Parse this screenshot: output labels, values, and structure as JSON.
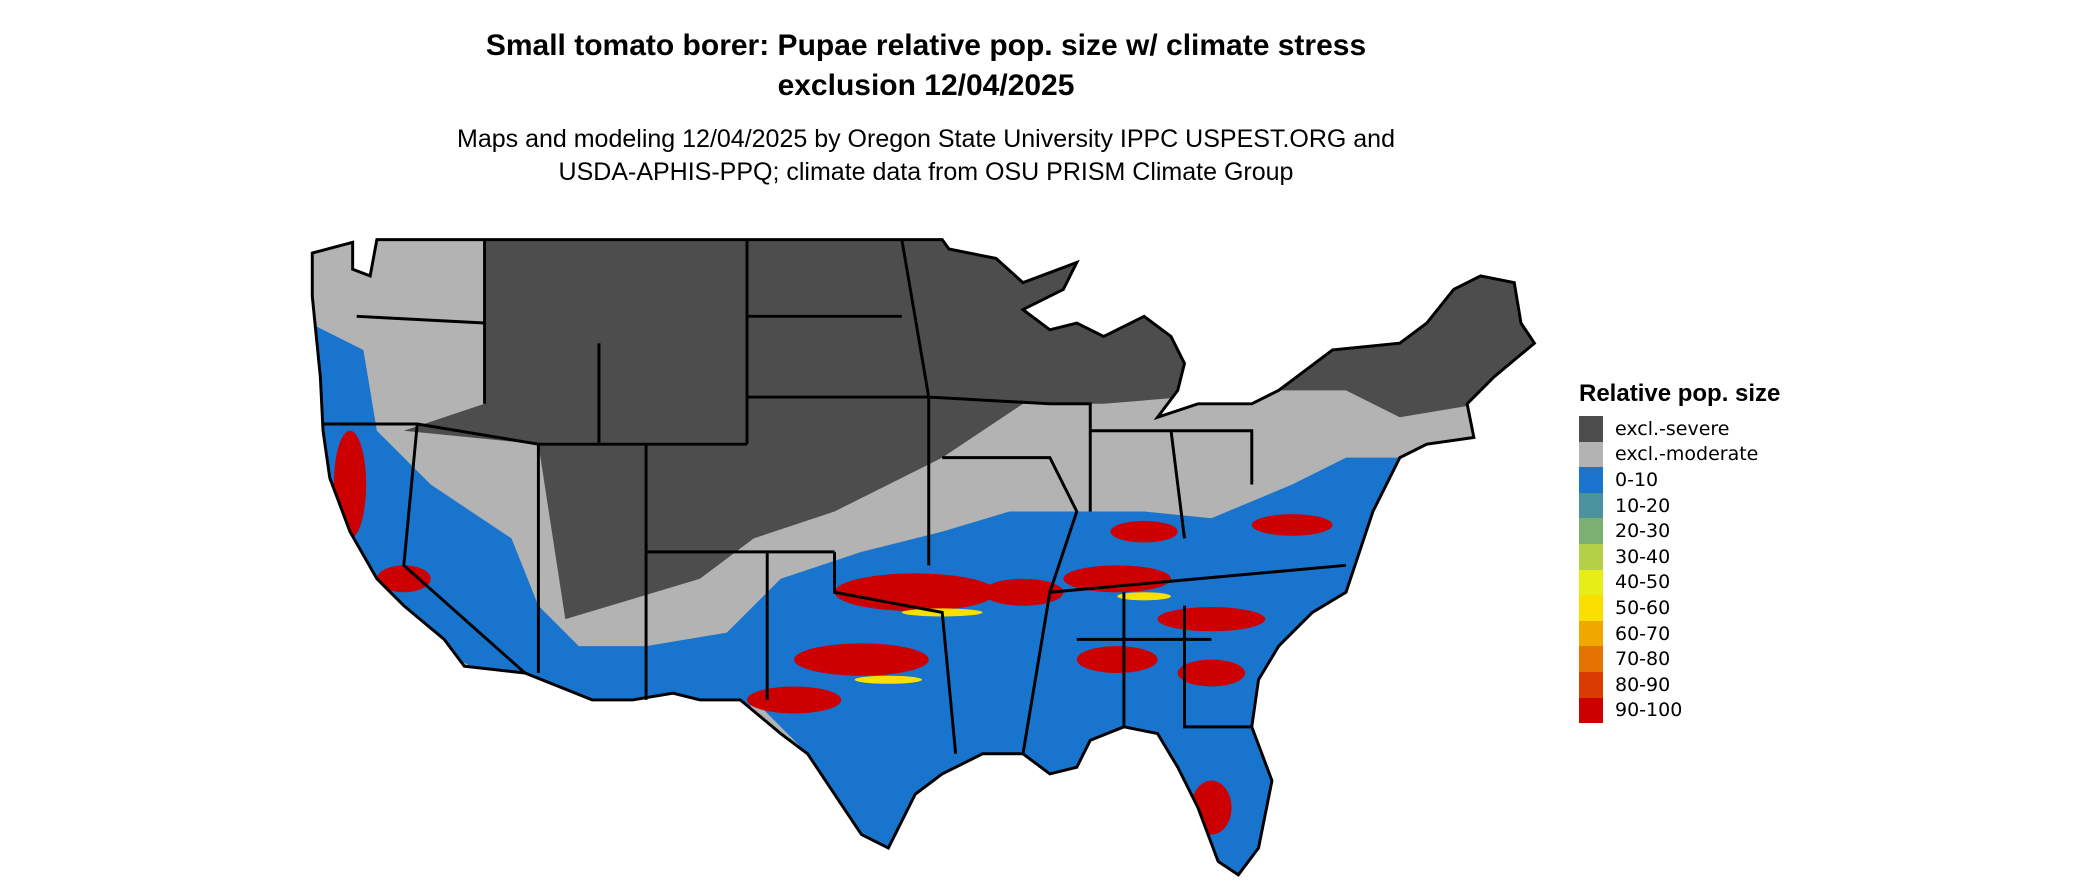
{
  "title": {
    "line1": "Small tomato borer: Pupae relative pop. size w/ climate stress",
    "line2": "exclusion 12/04/2025"
  },
  "subtitle": {
    "line1": "Maps and modeling 12/04/2025 by Oregon State University IPPC USPEST.ORG and",
    "line2": "USDA-APHIS-PPQ; climate data from OSU PRISM Climate Group"
  },
  "map": {
    "region": "Contiguous United States",
    "background_color": "#ffffff",
    "border_color": "#000000"
  },
  "legend": {
    "title": "Relative pop. size",
    "placement": "right",
    "items": [
      {
        "label": "excl.-severe",
        "color": "#4d4d4d"
      },
      {
        "label": "excl.-moderate",
        "color": "#b3b3b3"
      },
      {
        "label": "0-10",
        "color": "#1874cd"
      },
      {
        "label": "10-20",
        "color": "#4a939c"
      },
      {
        "label": "20-30",
        "color": "#7caf72"
      },
      {
        "label": "30-40",
        "color": "#b3d046"
      },
      {
        "label": "40-50",
        "color": "#e6ee16"
      },
      {
        "label": "50-60",
        "color": "#f9e000"
      },
      {
        "label": "60-70",
        "color": "#f0a800"
      },
      {
        "label": "70-80",
        "color": "#e47300"
      },
      {
        "label": "80-90",
        "color": "#d93b00"
      },
      {
        "label": "90-100",
        "color": "#cc0000"
      }
    ]
  }
}
